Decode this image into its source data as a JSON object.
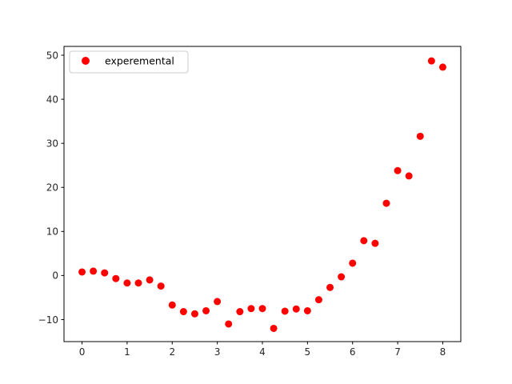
{
  "chart_data": {
    "type": "scatter",
    "title": "",
    "xlabel": "",
    "ylabel": "",
    "xlim": [
      -0.4,
      8.4
    ],
    "ylim": [
      -15,
      52
    ],
    "grid": false,
    "legend_position": "top-left",
    "xticks": [
      0,
      1,
      2,
      3,
      4,
      5,
      6,
      7,
      8
    ],
    "yticks": [
      -10,
      0,
      10,
      20,
      30,
      40,
      50
    ],
    "series": [
      {
        "name": "experemental",
        "color": "#ff0000",
        "marker": "circle",
        "x": [
          0,
          0.25,
          0.5,
          0.75,
          1,
          1.25,
          1.5,
          1.75,
          2,
          2.25,
          2.5,
          2.75,
          3,
          3.25,
          3.5,
          3.75,
          4,
          4.25,
          4.5,
          4.75,
          5,
          5.25,
          5.5,
          5.75,
          6,
          6.25,
          6.5,
          6.75,
          7,
          7.25,
          7.5,
          7.75,
          8
        ],
        "y": [
          0.8,
          1.0,
          0.6,
          -0.7,
          -1.7,
          -1.7,
          -1.0,
          -2.4,
          -6.7,
          -8.2,
          -8.7,
          -8.0,
          -5.9,
          -11.0,
          -8.2,
          -7.5,
          -7.5,
          -12.0,
          -8.1,
          -7.6,
          -8.0,
          -5.5,
          -2.7,
          -0.3,
          2.8,
          7.9,
          7.3,
          16.4,
          23.8,
          22.6,
          31.6,
          48.7,
          47.3
        ]
      }
    ]
  }
}
